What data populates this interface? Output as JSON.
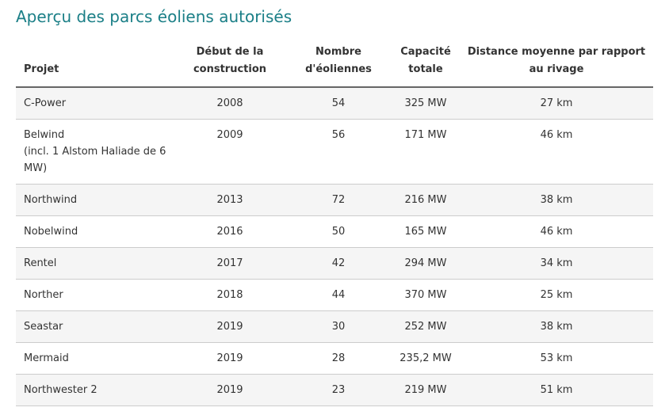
{
  "header": {
    "title": "Aperçu des parcs éoliens autorisés"
  },
  "table": {
    "columns": [
      "Projet",
      "Début de la construction",
      "Nombre d'éoliennes",
      "Capacité totale",
      "Distance moyenne par rapport au rivage"
    ],
    "rows": [
      [
        "C-Power",
        "2008",
        "54",
        "325 MW",
        "27 km"
      ],
      [
        [
          "Belwind",
          "(incl. 1 Alstom Haliade de 6 MW)"
        ],
        "2009",
        "56",
        "171 MW",
        "46 km"
      ],
      [
        "Northwind",
        "2013",
        "72",
        "216 MW",
        "38 km"
      ],
      [
        "Nobelwind",
        "2016",
        "50",
        "165 MW",
        "46 km"
      ],
      [
        "Rentel",
        "2017",
        "42",
        "294 MW",
        "34 km"
      ],
      [
        "Norther",
        "2018",
        "44",
        "370 MW",
        "25 km"
      ],
      [
        "Seastar",
        "2019",
        "30",
        "252 MW",
        "38 km"
      ],
      [
        "Mermaid",
        "2019",
        "28",
        "235,2 MW",
        "53 km"
      ],
      [
        "Northwester 2",
        "2019",
        "23",
        "219 MW",
        "51 km"
      ]
    ]
  }
}
